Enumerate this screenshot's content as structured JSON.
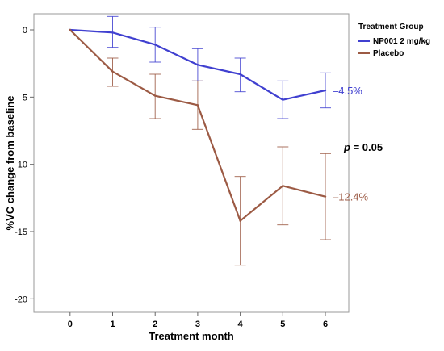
{
  "chart_data": {
    "type": "line",
    "title": "",
    "xlabel": "Treatment month",
    "ylabel": "%VC change from baseline",
    "x": [
      0,
      1,
      2,
      3,
      4,
      5,
      6
    ],
    "xlim": [
      -0.85,
      6.55
    ],
    "ylim": [
      -21,
      1.2
    ],
    "yticks": [
      0,
      -5,
      -10,
      -15,
      -20
    ],
    "grid": false,
    "legend": {
      "title": "Treatment Group",
      "placement": "top-right, outside plot"
    },
    "series": [
      {
        "name": "NP001 2 mg/kg",
        "color": "#4040d0",
        "values": [
          0,
          -0.2,
          -1.1,
          -2.6,
          -3.3,
          -5.2,
          -4.5
        ],
        "error_low": [
          null,
          -1.3,
          -2.4,
          -3.8,
          -4.6,
          -6.6,
          -5.8
        ],
        "error_high": [
          null,
          1.0,
          0.2,
          -1.4,
          -2.1,
          -3.8,
          -3.2
        ],
        "end_label": "–4.5%"
      },
      {
        "name": "Placebo",
        "color": "#9c5a44",
        "values": [
          0,
          -3.1,
          -4.9,
          -5.6,
          -14.2,
          -11.6,
          -12.4
        ],
        "error_low": [
          null,
          -4.2,
          -6.6,
          -7.4,
          -17.5,
          -14.5,
          -15.6
        ],
        "error_high": [
          null,
          -2.1,
          -3.3,
          -3.8,
          -10.9,
          -8.7,
          -9.2
        ],
        "end_label": "–12.4%"
      }
    ],
    "annotations": [
      {
        "text_italic": "p",
        "text": " = 0.05"
      }
    ]
  }
}
